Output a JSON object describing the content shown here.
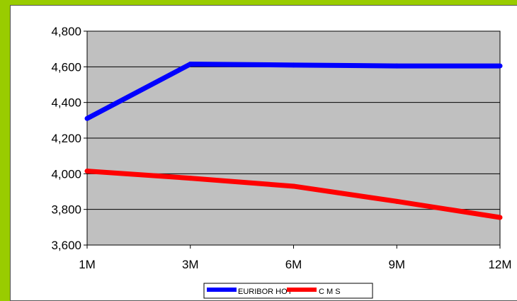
{
  "chart_data": {
    "type": "line",
    "categories": [
      "1M",
      "3M",
      "6M",
      "9M",
      "12M"
    ],
    "series": [
      {
        "name": "EURIBOR HOY",
        "color": "#0000ff",
        "values": [
          4.31,
          4.615,
          4.61,
          4.605,
          4.605
        ]
      },
      {
        "name": "C M S",
        "color": "#ff0000",
        "values": [
          4.015,
          3.975,
          3.93,
          3.845,
          3.755
        ]
      }
    ],
    "y_ticks": [
      "3,600",
      "3,800",
      "4,000",
      "4,200",
      "4,400",
      "4,600",
      "4,800"
    ],
    "ylim": [
      3.6,
      4.8
    ],
    "grid": true,
    "plot_background": "#c0c0c0",
    "legend_position": "bottom"
  }
}
